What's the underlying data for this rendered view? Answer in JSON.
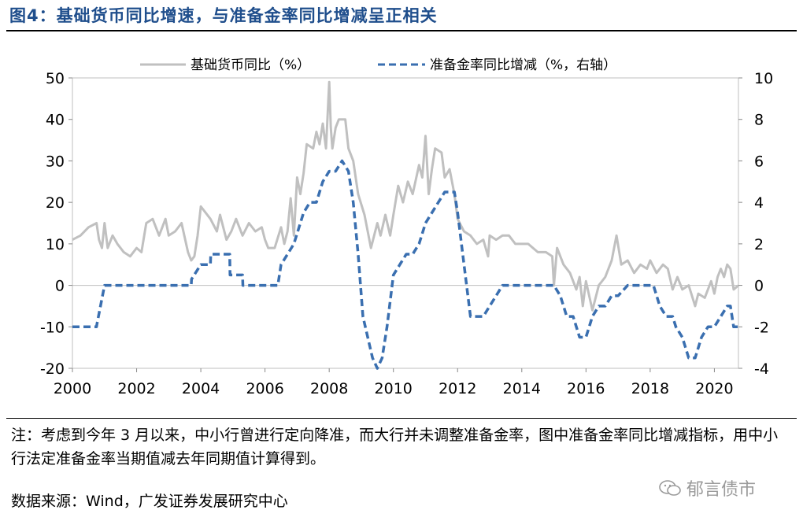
{
  "title": "图4：基础货币同比增速，与准备金率同比增减呈正相关",
  "chart_data": {
    "type": "line",
    "title": "图4：基础货币同比增速，与准备金率同比增减呈正相关",
    "xlabel": "",
    "ylabel": "",
    "x_ticks": [
      "2000",
      "2002",
      "2004",
      "2006",
      "2008",
      "2010",
      "2012",
      "2014",
      "2016",
      "2018",
      "2020"
    ],
    "y_left_ticks": [
      "50",
      "40",
      "30",
      "20",
      "10",
      "0",
      "-10",
      "-20"
    ],
    "y_right_ticks": [
      "10",
      "8",
      "6",
      "4",
      "2",
      "0",
      "-2",
      "-4"
    ],
    "ylim_left": [
      -20,
      50
    ],
    "ylim_right": [
      -4,
      10
    ],
    "xlim": [
      2000,
      2020.75
    ],
    "legend_position": "top-center",
    "series": [
      {
        "name": "基础货币同比（%）",
        "axis": "left",
        "color": "#c0c0c0",
        "style": "solid",
        "x": [
          2000,
          2000.25,
          2000.5,
          2000.75,
          2000.83,
          2000.92,
          2001.0,
          2001.1,
          2001.25,
          2001.4,
          2001.6,
          2001.8,
          2002.0,
          2002.15,
          2002.3,
          2002.5,
          2002.7,
          2002.9,
          2003.0,
          2003.2,
          2003.4,
          2003.6,
          2003.7,
          2003.8,
          2003.9,
          2004.0,
          2004.1,
          2004.3,
          2004.5,
          2004.6,
          2004.8,
          2004.95,
          2005.1,
          2005.3,
          2005.5,
          2005.7,
          2005.9,
          2006.0,
          2006.1,
          2006.3,
          2006.5,
          2006.6,
          2006.7,
          2006.8,
          2006.9,
          2007.0,
          2007.1,
          2007.2,
          2007.3,
          2007.5,
          2007.6,
          2007.7,
          2007.8,
          2007.9,
          2008.0,
          2008.05,
          2008.1,
          2008.2,
          2008.3,
          2008.5,
          2008.6,
          2008.75,
          2008.9,
          2009.1,
          2009.3,
          2009.5,
          2009.6,
          2009.75,
          2009.9,
          2010.0,
          2010.15,
          2010.3,
          2010.45,
          2010.6,
          2010.8,
          2010.9,
          2011.0,
          2011.1,
          2011.2,
          2011.3,
          2011.5,
          2011.6,
          2011.75,
          2011.9,
          2012.0,
          2012.2,
          2012.4,
          2012.6,
          2012.8,
          2012.95,
          2013.0,
          2013.2,
          2013.4,
          2013.6,
          2013.8,
          2014.0,
          2014.2,
          2014.5,
          2014.75,
          2014.95,
          2015.0,
          2015.1,
          2015.3,
          2015.5,
          2015.7,
          2015.8,
          2015.9,
          2016.0,
          2016.2,
          2016.4,
          2016.6,
          2016.8,
          2016.95,
          2017.1,
          2017.3,
          2017.5,
          2017.7,
          2017.9,
          2018.0,
          2018.2,
          2018.4,
          2018.55,
          2018.7,
          2018.85,
          2019.0,
          2019.2,
          2019.4,
          2019.5,
          2019.7,
          2019.9,
          2020.0,
          2020.1,
          2020.2,
          2020.3,
          2020.4,
          2020.5,
          2020.6,
          2020.75
        ],
        "values": [
          11,
          12,
          14,
          15,
          11,
          9,
          15,
          9,
          12,
          10,
          8,
          7,
          9,
          8,
          15,
          16,
          12,
          16,
          12,
          13,
          15,
          8,
          6,
          7,
          12,
          19,
          18,
          16,
          13,
          17,
          11,
          13,
          16,
          12,
          15,
          13,
          14,
          11,
          9,
          9,
          14,
          10,
          13,
          21,
          12,
          26,
          22,
          27,
          34,
          33,
          37,
          34,
          39,
          33,
          49,
          38,
          33,
          38,
          40,
          40,
          33,
          30,
          22,
          17,
          9,
          15,
          12,
          17,
          12,
          17,
          24,
          20,
          25,
          22,
          29,
          26,
          36,
          22,
          28,
          33,
          32,
          26,
          28,
          22,
          16,
          13,
          12,
          10,
          11,
          7,
          12,
          11,
          12,
          12,
          10,
          10,
          10,
          8,
          8,
          7,
          0,
          9,
          5,
          3,
          -1,
          2,
          -5,
          1,
          -6,
          0,
          2,
          6,
          12,
          5,
          6,
          3,
          5,
          4,
          6,
          3,
          5,
          4,
          -1,
          2,
          -1,
          0,
          -5,
          -2,
          -3,
          1,
          -2,
          2,
          4,
          2,
          5,
          4,
          -1,
          0
        ]
      },
      {
        "name": "准备金率同比增减（%，右轴）",
        "axis": "right",
        "color": "#3a6fb0",
        "style": "dashed",
        "x": [
          2000,
          2000.75,
          2000.76,
          2001.0,
          2003.7,
          2003.71,
          2004.0,
          2004.3,
          2004.31,
          2004.5,
          2004.9,
          2004.91,
          2005.3,
          2005.31,
          2006.0,
          2006.4,
          2006.5,
          2006.7,
          2006.9,
          2007.0,
          2007.2,
          2007.4,
          2007.6,
          2007.8,
          2008.0,
          2008.2,
          2008.4,
          2008.6,
          2008.75,
          2008.9,
          2009.05,
          2009.2,
          2009.35,
          2009.5,
          2009.65,
          2009.8,
          2010.0,
          2010.2,
          2010.4,
          2010.6,
          2010.8,
          2011.0,
          2011.2,
          2011.4,
          2011.6,
          2011.9,
          2012.0,
          2012.2,
          2012.4,
          2012.8,
          2013.0,
          2013.2,
          2013.4,
          2014.8,
          2015.0,
          2015.2,
          2015.4,
          2015.6,
          2015.8,
          2016.0,
          2016.2,
          2016.4,
          2016.6,
          2016.8,
          2017.0,
          2017.3,
          2017.5,
          2017.8,
          2018.1,
          2018.3,
          2018.5,
          2018.7,
          2018.8,
          2019.0,
          2019.2,
          2019.4,
          2019.6,
          2019.8,
          2020.0,
          2020.2,
          2020.4,
          2020.5,
          2020.6,
          2020.75
        ],
        "values": [
          -2,
          -2,
          -1.9,
          0,
          0,
          0.3,
          1,
          1,
          1.5,
          1.5,
          1.5,
          0.5,
          0.5,
          0,
          0,
          0,
          1,
          1.5,
          2,
          2.5,
          3.5,
          4,
          4,
          5,
          5.5,
          5.5,
          6,
          5.5,
          4,
          1.5,
          -1.5,
          -2.5,
          -3.5,
          -4,
          -3.5,
          -2,
          0.5,
          1,
          1.5,
          1.5,
          2,
          3,
          3.5,
          4,
          4.5,
          4.5,
          3.5,
          1,
          -1.5,
          -1.5,
          -1,
          -0.5,
          0,
          0,
          0,
          -0.5,
          -1.5,
          -1.5,
          -2.5,
          -2.5,
          -1.5,
          -1,
          -1,
          -0.5,
          -0.5,
          0,
          0,
          0,
          0,
          -1,
          -1.5,
          -1.5,
          -2,
          -2.5,
          -3.5,
          -3.5,
          -2.5,
          -2,
          -2,
          -1.5,
          -1,
          -1,
          -2,
          -2
        ]
      }
    ]
  },
  "note": "注：考虑到今年 3 月以来，中小行曾进行定向降准，而大行并未调整准备金率，图中准备金率同比增减指标，用中小行法定准备金率当期值减去年同期值计算得到。",
  "source": "数据来源：Wind，广发证券发展研究中心",
  "watermark": "郁言债市"
}
